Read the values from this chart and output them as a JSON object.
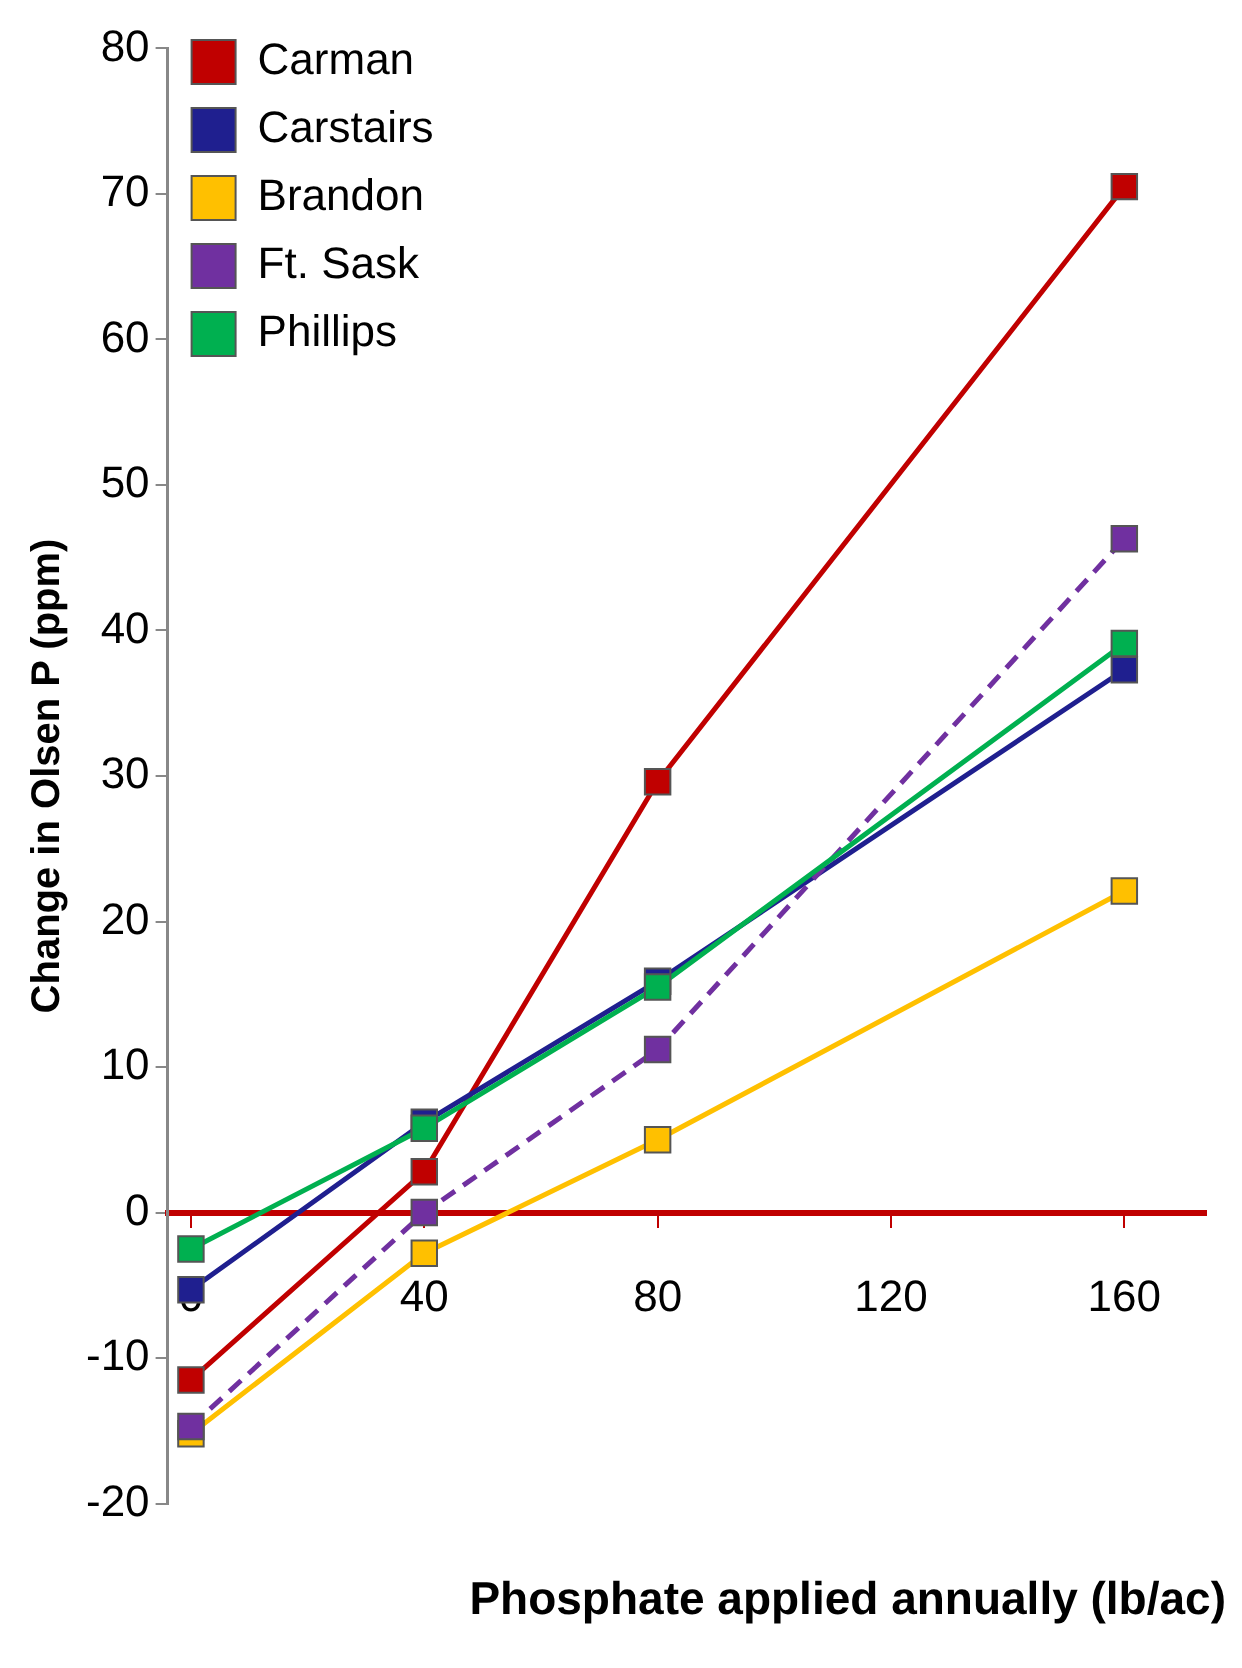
{
  "chart_data": {
    "type": "line",
    "xlabel": "Phosphate applied annually (lb/ac)",
    "ylabel": "Change in Olsen P (ppm)",
    "x": [
      0,
      40,
      80,
      160
    ],
    "series": [
      {
        "name": "Carman",
        "color": "#c00000",
        "values": [
          -11.5,
          2.8,
          29.6,
          70.5
        ]
      },
      {
        "name": "Carstairs",
        "color": "#1f1f8f",
        "values": [
          -5.3,
          6.2,
          15.9,
          37.3
        ]
      },
      {
        "name": "Brandon",
        "color": "#ffc000",
        "values": [
          -15.2,
          -2.8,
          5.0,
          22.1
        ]
      },
      {
        "name": "Ft. Sask",
        "color": "#7030a0",
        "line_style": "dashed",
        "values": [
          -14.7,
          0,
          11.2,
          46.3
        ]
      },
      {
        "name": "Phillips",
        "color": "#00b050",
        "values": [
          -2.5,
          5.8,
          15.5,
          39.1
        ]
      }
    ],
    "xlim": [
      -4,
      174
    ],
    "xticks": [
      0,
      40,
      80,
      120,
      160
    ],
    "ylim": [
      -20,
      80
    ],
    "yticks": [
      -20,
      -10,
      0,
      10,
      20,
      30,
      40,
      50,
      60,
      70,
      80
    ],
    "grid": false,
    "legend": "top left",
    "marker": "square"
  }
}
